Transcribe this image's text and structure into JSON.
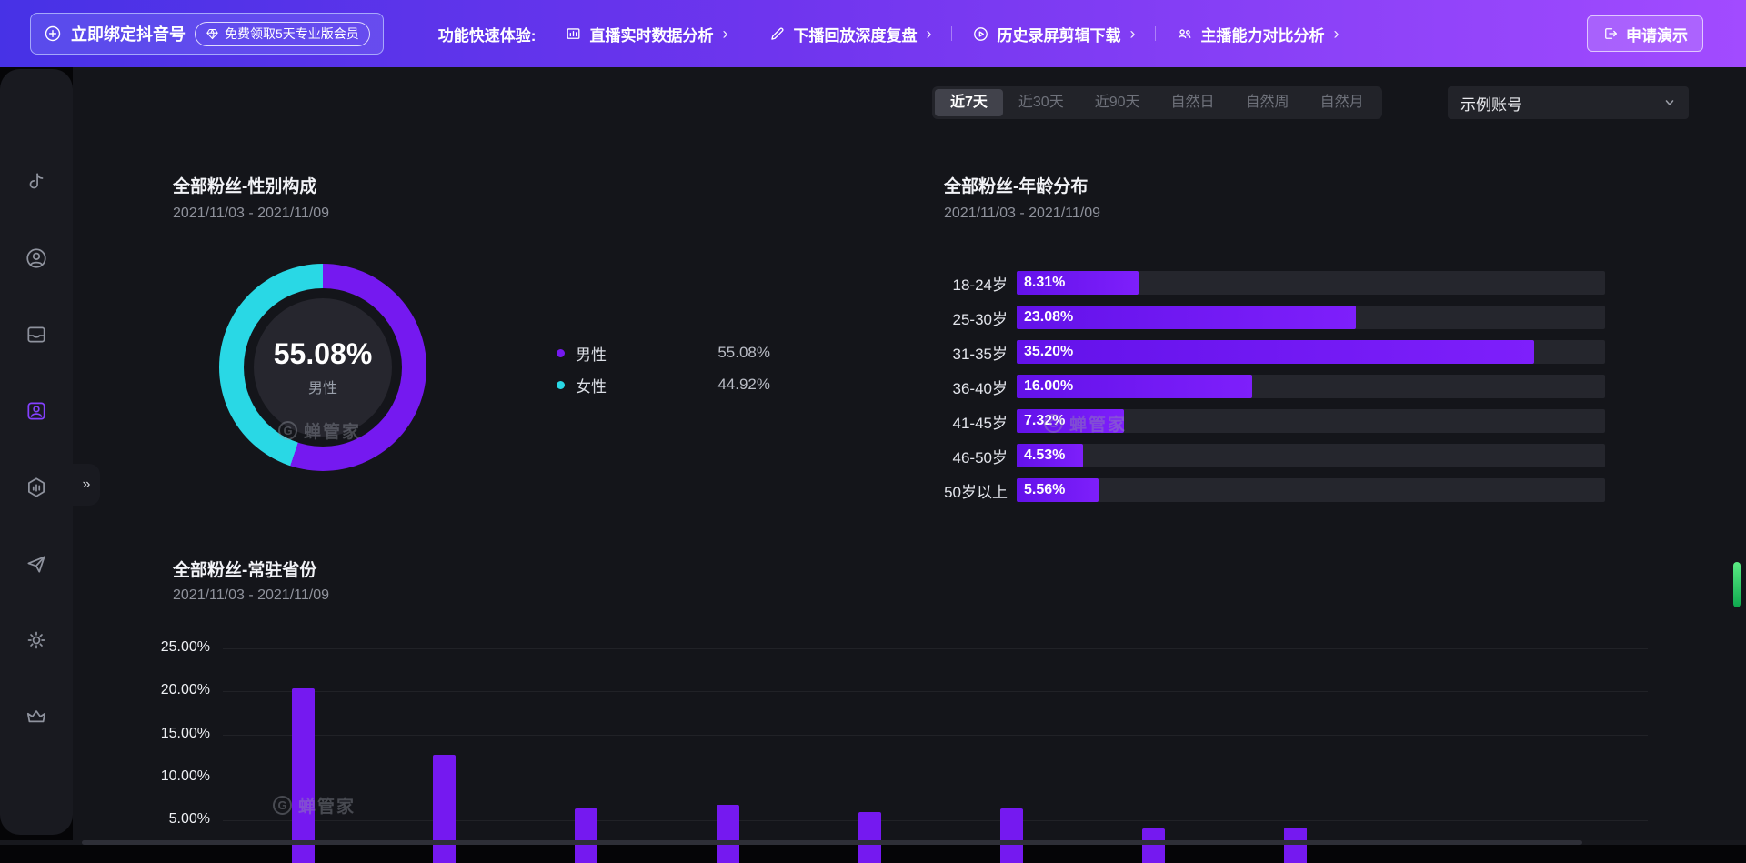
{
  "topbar": {
    "bind_button_label": "立即绑定抖音号",
    "promo_badge_label": "免费领取5天专业版会员",
    "quick_section_label": "功能快速体验:",
    "quick_links": [
      {
        "label": "直播实时数据分析",
        "icon": "live-data-icon"
      },
      {
        "label": "下播回放深度复盘",
        "icon": "replay-review-icon"
      },
      {
        "label": "历史录屏剪辑下载",
        "icon": "screen-record-download-icon"
      },
      {
        "label": "主播能力对比分析",
        "icon": "host-compare-icon"
      }
    ],
    "demo_button_label": "申请演示"
  },
  "sidebar": {
    "items": [
      {
        "name": "douyin",
        "active": false
      },
      {
        "name": "user",
        "active": false
      },
      {
        "name": "inbox",
        "active": false
      },
      {
        "name": "fans",
        "active": true
      },
      {
        "name": "data",
        "active": false
      },
      {
        "name": "send",
        "active": false
      },
      {
        "name": "settings",
        "active": false
      },
      {
        "name": "membership",
        "active": false
      }
    ],
    "expand_glyph": "»"
  },
  "filters": {
    "tabs": [
      "近7天",
      "近30天",
      "近90天",
      "自然日",
      "自然周",
      "自然月"
    ],
    "active_tab": "近7天",
    "account_select_value": "示例账号"
  },
  "gender_panel": {
    "title": "全部粉丝-性别构成",
    "date_range": "2021/11/03 - 2021/11/09",
    "center_value": "55.08%",
    "center_label": "男性",
    "legend": [
      {
        "label": "男性",
        "value": "55.08%",
        "color": "#7519f0"
      },
      {
        "label": "女性",
        "value": "44.92%",
        "color": "#29d8e5"
      }
    ]
  },
  "age_panel": {
    "title": "全部粉丝-年龄分布",
    "date_range": "2021/11/03 - 2021/11/09",
    "axis_max": 40,
    "bar_color": "#7519f0",
    "rows": [
      {
        "label": "18-24岁",
        "value": 8.31,
        "display": "8.31%"
      },
      {
        "label": "25-30岁",
        "value": 23.08,
        "display": "23.08%"
      },
      {
        "label": "31-35岁",
        "value": 35.2,
        "display": "35.20%"
      },
      {
        "label": "36-40岁",
        "value": 16.0,
        "display": "16.00%"
      },
      {
        "label": "41-45岁",
        "value": 7.32,
        "display": "7.32%"
      },
      {
        "label": "46-50岁",
        "value": 4.53,
        "display": "4.53%"
      },
      {
        "label": "50岁以上",
        "value": 5.56,
        "display": "5.56%"
      }
    ]
  },
  "province_panel": {
    "title": "全部粉丝-常驻省份",
    "date_range": "2021/11/03 - 2021/11/09",
    "y_axis_ticks": [
      "25.00%",
      "20.00%",
      "15.00%",
      "10.00%",
      "5.00%"
    ],
    "values": [
      20.3,
      12.6,
      6.4,
      6.8,
      6.0,
      6.4,
      4.0,
      4.2
    ],
    "bar_color": "#7519f0"
  },
  "watermark_text": "蝉管家",
  "chart_data": [
    {
      "type": "pie",
      "donut": true,
      "title": "全部粉丝-性别构成",
      "subtitle": "2021/11/03 - 2021/11/09",
      "labels": [
        "男性",
        "女性"
      ],
      "values": [
        55.08,
        44.92
      ],
      "colors": [
        "#7519f0",
        "#29d8e5"
      ],
      "legend_position": "right",
      "center_text": "55.08% 男性"
    },
    {
      "type": "bar",
      "orientation": "horizontal",
      "title": "全部粉丝-年龄分布",
      "subtitle": "2021/11/03 - 2021/11/09",
      "categories": [
        "18-24岁",
        "25-30岁",
        "31-35岁",
        "36-40岁",
        "41-45岁",
        "46-50岁",
        "50岁以上"
      ],
      "values": [
        8.31,
        23.08,
        35.2,
        16.0,
        7.32,
        4.53,
        5.56
      ],
      "data_labels": [
        "8.31%",
        "23.08%",
        "35.20%",
        "16.00%",
        "7.32%",
        "4.53%",
        "5.56%"
      ],
      "xlim": [
        0,
        40
      ],
      "grid": false
    },
    {
      "type": "bar",
      "orientation": "vertical",
      "title": "全部粉丝-常驻省份",
      "subtitle": "2021/11/03 - 2021/11/09",
      "categories": [
        "",
        "",
        "",
        "",
        "",
        "",
        "",
        ""
      ],
      "values": [
        20.3,
        12.6,
        6.4,
        6.8,
        6.0,
        6.4,
        4.0,
        4.2
      ],
      "y_ticks": [
        "25.00%",
        "20.00%",
        "15.00%",
        "10.00%",
        "5.00%"
      ],
      "ylim": [
        0,
        25
      ],
      "grid": true,
      "note": "category labels are cut off below the visible viewport; values estimated from gridlines"
    }
  ]
}
